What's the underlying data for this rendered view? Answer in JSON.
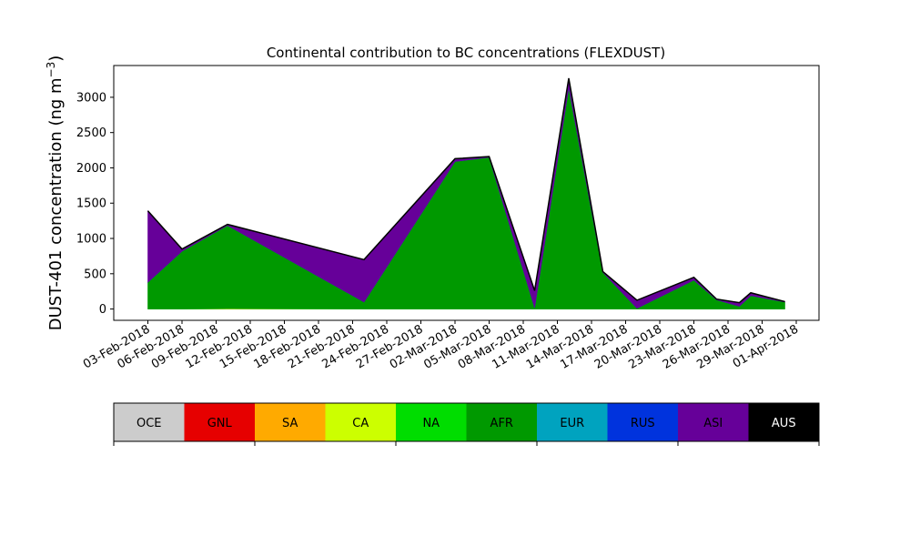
{
  "chart_data": {
    "type": "area",
    "stacked": true,
    "title": "Continental contribution to BC concentrations (FLEXDUST)",
    "ylabel_main": "DUST-401 concentration (ng m",
    "ylabel_sup": "−3",
    "ylabel_tail": ")",
    "xlabel": "",
    "ylim": [
      -160,
      3450
    ],
    "yticks": [
      0,
      500,
      1000,
      1500,
      2000,
      2500,
      3000
    ],
    "ytick_labels": [
      "0",
      "500",
      "1000",
      "1500",
      "2000",
      "2500",
      "3000"
    ],
    "xlim": [
      "2018-02-03",
      "2018-04-01"
    ],
    "xlim_pad_days": [
      -3,
      2
    ],
    "xticks": [
      "2018-02-03",
      "2018-02-06",
      "2018-02-09",
      "2018-02-12",
      "2018-02-15",
      "2018-02-18",
      "2018-02-21",
      "2018-02-24",
      "2018-02-27",
      "2018-03-02",
      "2018-03-05",
      "2018-03-08",
      "2018-03-11",
      "2018-03-14",
      "2018-03-17",
      "2018-03-20",
      "2018-03-23",
      "2018-03-26",
      "2018-03-29",
      "2018-04-01"
    ],
    "xtick_labels": [
      "03-Feb-2018",
      "06-Feb-2018",
      "09-Feb-2018",
      "12-Feb-2018",
      "15-Feb-2018",
      "18-Feb-2018",
      "21-Feb-2018",
      "24-Feb-2018",
      "27-Feb-2018",
      "02-Mar-2018",
      "05-Mar-2018",
      "08-Mar-2018",
      "11-Mar-2018",
      "14-Mar-2018",
      "17-Mar-2018",
      "20-Mar-2018",
      "23-Mar-2018",
      "26-Mar-2018",
      "29-Mar-2018",
      "01-Apr-2018"
    ],
    "x": [
      "2018-02-03",
      "2018-02-06",
      "2018-02-10",
      "2018-02-22",
      "2018-03-02",
      "2018-03-05",
      "2018-03-09",
      "2018-03-12",
      "2018-03-15",
      "2018-03-18",
      "2018-03-23",
      "2018-03-25",
      "2018-03-27",
      "2018-03-28",
      "2018-03-31"
    ],
    "series": [
      {
        "name": "OCE",
        "color": "#cccccc",
        "values": [
          0,
          0,
          0,
          0,
          0,
          0,
          0,
          0,
          0,
          0,
          0,
          0,
          0,
          0,
          0
        ]
      },
      {
        "name": "GNL",
        "color": "#e60000",
        "values": [
          0,
          0,
          0,
          0,
          0,
          0,
          0,
          0,
          0,
          0,
          0,
          0,
          0,
          0,
          0
        ]
      },
      {
        "name": "SA",
        "color": "#ffaa00",
        "values": [
          0,
          0,
          0,
          0,
          0,
          0,
          0,
          0,
          0,
          0,
          0,
          0,
          0,
          0,
          0
        ]
      },
      {
        "name": "CA",
        "color": "#ccff00",
        "values": [
          0,
          0,
          5,
          0,
          0,
          0,
          0,
          0,
          0,
          0,
          0,
          0,
          0,
          0,
          0
        ]
      },
      {
        "name": "NA",
        "color": "#00dd00",
        "values": [
          0,
          0,
          0,
          0,
          0,
          0,
          0,
          0,
          0,
          0,
          0,
          0,
          0,
          0,
          0
        ]
      },
      {
        "name": "AFR",
        "color": "#009900",
        "values": [
          380,
          820,
          1180,
          100,
          2090,
          2150,
          20,
          3140,
          520,
          10,
          410,
          130,
          40,
          190,
          100
        ]
      },
      {
        "name": "EUR",
        "color": "#00a3bf",
        "values": [
          0,
          0,
          0,
          0,
          0,
          0,
          0,
          0,
          0,
          0,
          0,
          0,
          0,
          0,
          0
        ]
      },
      {
        "name": "RUS",
        "color": "#0033dd",
        "values": [
          0,
          0,
          0,
          0,
          0,
          0,
          0,
          0,
          0,
          0,
          0,
          0,
          0,
          0,
          0
        ]
      },
      {
        "name": "ASI",
        "color": "#660099",
        "values": [
          1010,
          30,
          15,
          600,
          40,
          10,
          240,
          130,
          10,
          115,
          40,
          10,
          50,
          40,
          5
        ]
      },
      {
        "name": "AUS",
        "color": "#000000",
        "values": [
          0,
          0,
          0,
          0,
          0,
          0,
          0,
          0,
          0,
          0,
          0,
          0,
          0,
          0,
          0
        ]
      }
    ],
    "legend_placement": "bottom colorbar",
    "grid": false
  }
}
